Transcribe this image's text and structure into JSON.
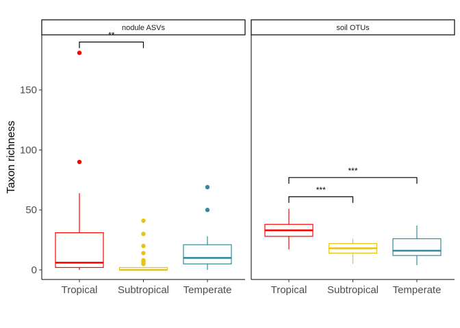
{
  "chart_data": {
    "type": "boxplot",
    "ylabel": "Taxon richness",
    "ylim": [
      -8,
      196
    ],
    "yticks": [
      0,
      50,
      100,
      150
    ],
    "categories": [
      "Tropical",
      "Subtropical",
      "Temperate"
    ],
    "colors": {
      "Tropical": "#ff0000",
      "Subtropical": "#e6c315",
      "Temperate": "#2e8b9e"
    },
    "panels": [
      {
        "strip": "nodule ASVs",
        "boxes": [
          {
            "category": "Tropical",
            "whisker_low": 0,
            "q1": 2,
            "median": 6,
            "q3": 31,
            "whisker_high": 64,
            "outliers": [
              90,
              181
            ]
          },
          {
            "category": "Subtropical",
            "whisker_low": 0,
            "q1": 0,
            "median": 0,
            "q3": 2,
            "whisker_high": 2,
            "outliers": [
              5,
              6,
              7,
              8,
              14,
              20,
              30,
              41
            ]
          },
          {
            "category": "Temperate",
            "whisker_low": 0,
            "q1": 5,
            "median": 10,
            "q3": 21,
            "whisker_high": 28,
            "outliers": [
              50,
              69
            ]
          }
        ],
        "significance": [
          {
            "from": "Tropical",
            "to": "Subtropical",
            "y": 190,
            "label": "**"
          }
        ]
      },
      {
        "strip": "soil OTUs",
        "boxes": [
          {
            "category": "Tropical",
            "whisker_low": 17,
            "q1": 28,
            "median": 33,
            "q3": 38,
            "whisker_high": 51,
            "outliers": []
          },
          {
            "category": "Subtropical",
            "whisker_low": 5,
            "q1": 14,
            "median": 18,
            "q3": 22,
            "whisker_high": 26,
            "outliers": []
          },
          {
            "category": "Temperate",
            "whisker_low": 4,
            "q1": 12,
            "median": 16,
            "q3": 26,
            "whisker_high": 37,
            "outliers": []
          }
        ],
        "significance": [
          {
            "from": "Tropical",
            "to": "Subtropical",
            "y": 61,
            "label": "***"
          },
          {
            "from": "Tropical",
            "to": "Temperate",
            "y": 77,
            "label": "***"
          }
        ]
      }
    ]
  }
}
